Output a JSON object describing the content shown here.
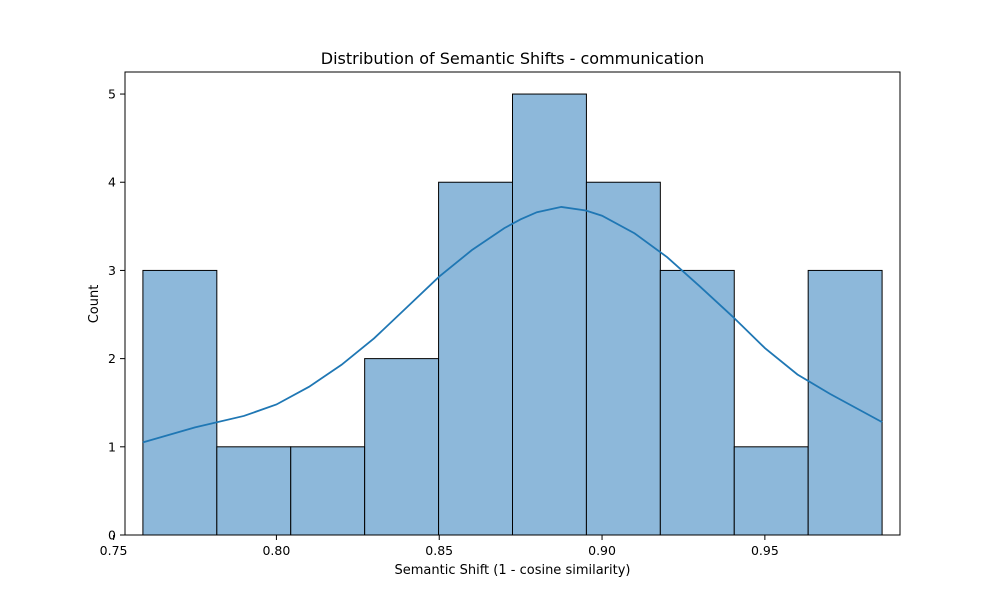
{
  "chart_data": {
    "type": "bar",
    "title": "Distribution of Semantic Shifts - communication",
    "xlabel": "Semantic Shift (1 - cosine similarity)",
    "ylabel": "Count",
    "xlim": [
      0.7535,
      0.9915
    ],
    "ylim": [
      0,
      5.25
    ],
    "xticks": [
      "0.75",
      "0.80",
      "0.85",
      "0.90",
      "0.95"
    ],
    "yticks": [
      "0",
      "1",
      "2",
      "3",
      "4",
      "5"
    ],
    "grid": false,
    "bins": [
      {
        "x0": 0.759,
        "x1": 0.7817,
        "count": 3
      },
      {
        "x0": 0.7817,
        "x1": 0.8044,
        "count": 1
      },
      {
        "x0": 0.8044,
        "x1": 0.8271,
        "count": 1
      },
      {
        "x0": 0.8271,
        "x1": 0.8498,
        "count": 2
      },
      {
        "x0": 0.8498,
        "x1": 0.8725,
        "count": 4
      },
      {
        "x0": 0.8725,
        "x1": 0.8952,
        "count": 5
      },
      {
        "x0": 0.8952,
        "x1": 0.9179,
        "count": 4
      },
      {
        "x0": 0.9179,
        "x1": 0.9406,
        "count": 3
      },
      {
        "x0": 0.9406,
        "x1": 0.9633,
        "count": 1
      },
      {
        "x0": 0.9633,
        "x1": 0.986,
        "count": 3
      }
    ],
    "kde": {
      "x": [
        0.759,
        0.775,
        0.79,
        0.8,
        0.81,
        0.82,
        0.83,
        0.84,
        0.85,
        0.86,
        0.87,
        0.875,
        0.88,
        0.8875,
        0.895,
        0.9,
        0.91,
        0.92,
        0.93,
        0.94,
        0.95,
        0.96,
        0.97,
        0.986
      ],
      "y": [
        1.05,
        1.22,
        1.35,
        1.48,
        1.68,
        1.93,
        2.23,
        2.58,
        2.93,
        3.23,
        3.48,
        3.58,
        3.66,
        3.72,
        3.68,
        3.62,
        3.42,
        3.15,
        2.82,
        2.48,
        2.12,
        1.82,
        1.6,
        1.28
      ]
    },
    "bar_color": "#8db8da",
    "bar_edge_color": "#000000",
    "kde_color": "#1f77b4"
  }
}
